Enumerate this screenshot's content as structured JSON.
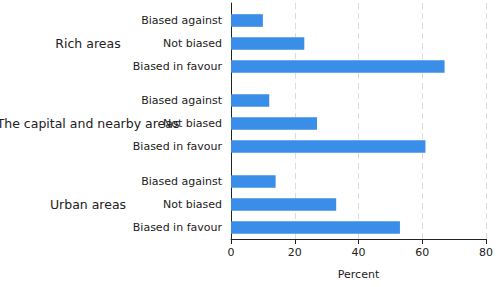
{
  "chart_data": {
    "type": "bar",
    "orientation": "horizontal",
    "categories": [
      "Biased against",
      "Not biased",
      "Biased in favour"
    ],
    "series": [
      {
        "name": "Rich areas",
        "color": "#3a8ee8",
        "values": [
          10,
          23,
          67
        ]
      },
      {
        "name": "The capital and nearby areas",
        "color": "#3a8ee8",
        "values": [
          12,
          27,
          61
        ]
      },
      {
        "name": "Urban areas",
        "color": "#3a8ee8",
        "values": [
          14,
          33,
          53
        ]
      }
    ],
    "xlabel": "Percent",
    "xlim": [
      0,
      80
    ],
    "xticks": [
      0,
      20,
      40,
      60,
      80
    ],
    "grid": true
  }
}
